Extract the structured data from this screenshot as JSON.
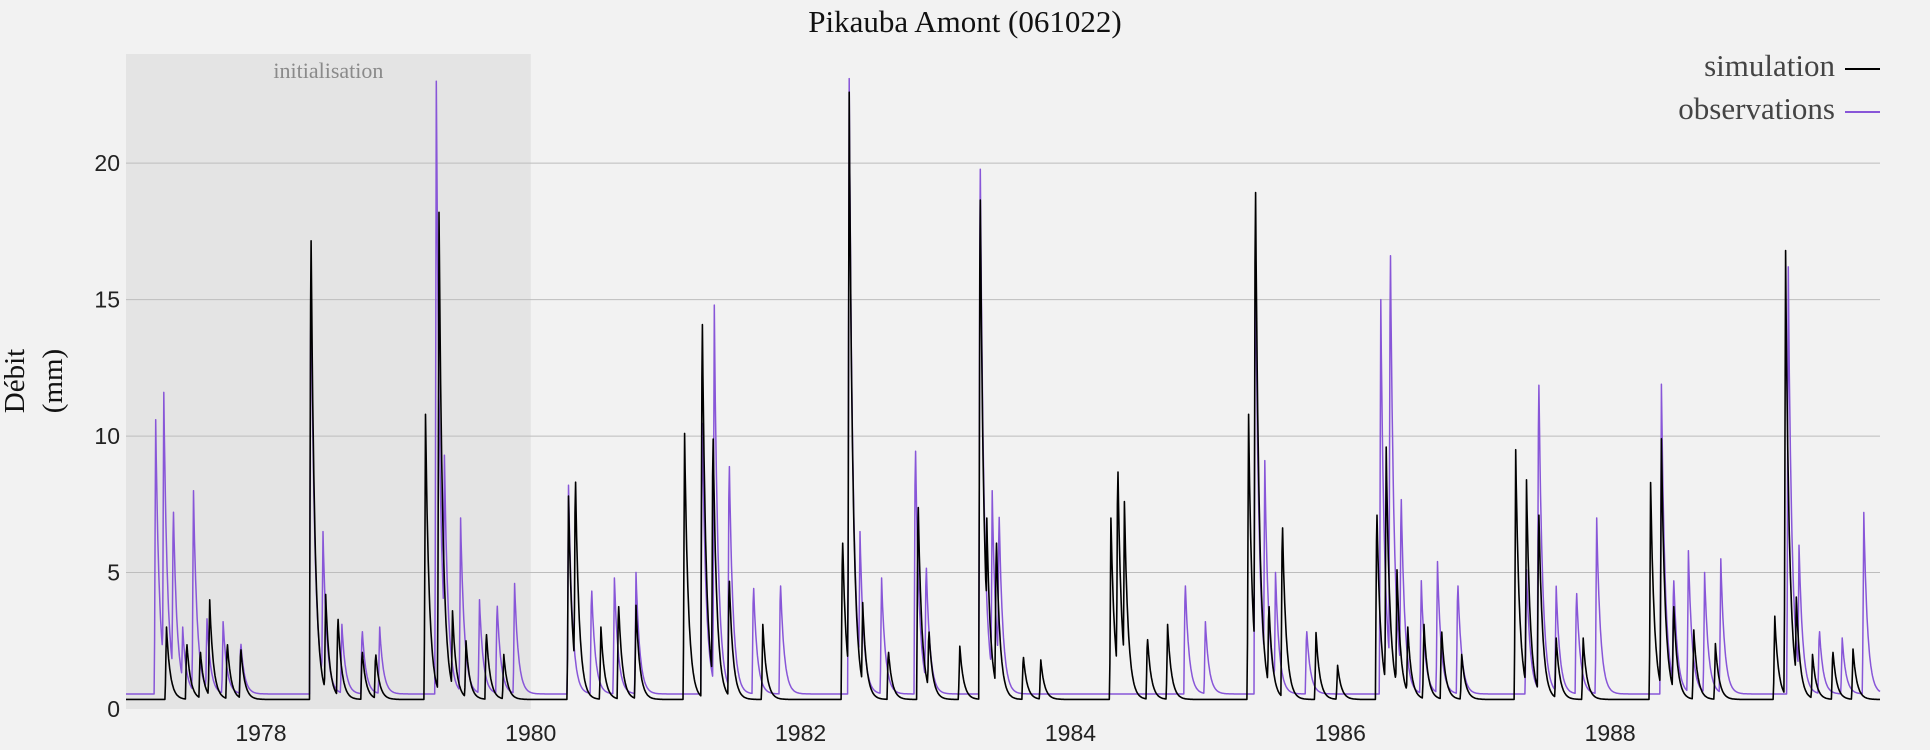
{
  "chart_data": {
    "type": "line",
    "title": "Pikauba Amont (061022)",
    "ylabel": [
      "Débit",
      "(mm)"
    ],
    "xlabel": "",
    "xlim": [
      1977.0,
      1990.0
    ],
    "ylim": [
      0,
      24
    ],
    "x_ticks": [
      1978,
      1980,
      1982,
      1984,
      1986,
      1988
    ],
    "y_ticks": [
      0,
      5,
      10,
      15,
      20
    ],
    "grid": "horizontal",
    "legend_position": "top-right",
    "shaded_region": {
      "label": "initialisation",
      "x_start": 1977.0,
      "x_end": 1980.0
    },
    "series": [
      {
        "name": "simulation",
        "color": "#000000",
        "peaks": [
          {
            "x": 1977.3,
            "y": 3.0
          },
          {
            "x": 1977.45,
            "y": 2.5
          },
          {
            "x": 1977.55,
            "y": 2.2
          },
          {
            "x": 1977.62,
            "y": 4.0
          },
          {
            "x": 1977.75,
            "y": 2.5
          },
          {
            "x": 1977.85,
            "y": 2.3
          },
          {
            "x": 1978.37,
            "y": 18.4
          },
          {
            "x": 1978.48,
            "y": 4.2
          },
          {
            "x": 1978.57,
            "y": 3.5
          },
          {
            "x": 1978.75,
            "y": 2.2
          },
          {
            "x": 1978.85,
            "y": 2.1
          },
          {
            "x": 1979.22,
            "y": 10.8
          },
          {
            "x": 1979.32,
            "y": 18.2
          },
          {
            "x": 1979.42,
            "y": 3.6
          },
          {
            "x": 1979.52,
            "y": 2.5
          },
          {
            "x": 1979.67,
            "y": 2.9
          },
          {
            "x": 1979.8,
            "y": 2.0
          },
          {
            "x": 1980.28,
            "y": 7.8
          },
          {
            "x": 1980.33,
            "y": 8.9
          },
          {
            "x": 1980.52,
            "y": 3.0
          },
          {
            "x": 1980.65,
            "y": 4.0
          },
          {
            "x": 1980.78,
            "y": 3.8
          },
          {
            "x": 1981.14,
            "y": 10.1
          },
          {
            "x": 1981.27,
            "y": 15.1
          },
          {
            "x": 1981.35,
            "y": 10.6
          },
          {
            "x": 1981.47,
            "y": 5.0
          },
          {
            "x": 1981.72,
            "y": 3.1
          },
          {
            "x": 1982.31,
            "y": 6.5
          },
          {
            "x": 1982.36,
            "y": 22.6
          },
          {
            "x": 1982.46,
            "y": 3.9
          },
          {
            "x": 1982.65,
            "y": 2.2
          },
          {
            "x": 1982.87,
            "y": 7.9
          },
          {
            "x": 1982.95,
            "y": 3.0
          },
          {
            "x": 1983.18,
            "y": 2.3
          },
          {
            "x": 1983.33,
            "y": 20.0
          },
          {
            "x": 1983.38,
            "y": 7.0
          },
          {
            "x": 1983.45,
            "y": 6.5
          },
          {
            "x": 1983.65,
            "y": 2.0
          },
          {
            "x": 1983.78,
            "y": 1.8
          },
          {
            "x": 1984.3,
            "y": 7.0
          },
          {
            "x": 1984.35,
            "y": 9.3
          },
          {
            "x": 1984.4,
            "y": 7.6
          },
          {
            "x": 1984.57,
            "y": 2.7
          },
          {
            "x": 1984.72,
            "y": 3.1
          },
          {
            "x": 1985.32,
            "y": 10.8
          },
          {
            "x": 1985.37,
            "y": 20.3
          },
          {
            "x": 1985.47,
            "y": 4.0
          },
          {
            "x": 1985.57,
            "y": 7.1
          },
          {
            "x": 1985.82,
            "y": 2.8
          },
          {
            "x": 1985.98,
            "y": 1.6
          },
          {
            "x": 1986.27,
            "y": 7.6
          },
          {
            "x": 1986.34,
            "y": 9.6
          },
          {
            "x": 1986.42,
            "y": 5.1
          },
          {
            "x": 1986.5,
            "y": 3.0
          },
          {
            "x": 1986.62,
            "y": 3.1
          },
          {
            "x": 1986.75,
            "y": 3.0
          },
          {
            "x": 1986.9,
            "y": 2.0
          },
          {
            "x": 1987.3,
            "y": 9.5
          },
          {
            "x": 1987.38,
            "y": 8.4
          },
          {
            "x": 1987.47,
            "y": 7.6
          },
          {
            "x": 1987.6,
            "y": 2.6
          },
          {
            "x": 1987.8,
            "y": 2.6
          },
          {
            "x": 1988.3,
            "y": 8.3
          },
          {
            "x": 1988.38,
            "y": 9.9
          },
          {
            "x": 1988.47,
            "y": 4.0
          },
          {
            "x": 1988.62,
            "y": 2.9
          },
          {
            "x": 1988.78,
            "y": 2.4
          },
          {
            "x": 1989.22,
            "y": 3.4
          },
          {
            "x": 1989.3,
            "y": 16.8
          },
          {
            "x": 1989.38,
            "y": 4.1
          },
          {
            "x": 1989.5,
            "y": 2.0
          },
          {
            "x": 1989.65,
            "y": 2.2
          },
          {
            "x": 1989.8,
            "y": 2.2
          }
        ]
      },
      {
        "name": "observations",
        "color": "#8856d8",
        "peaks": [
          {
            "x": 1977.22,
            "y": 10.6
          },
          {
            "x": 1977.28,
            "y": 11.6
          },
          {
            "x": 1977.35,
            "y": 7.7
          },
          {
            "x": 1977.42,
            "y": 3.0
          },
          {
            "x": 1977.5,
            "y": 8.0
          },
          {
            "x": 1977.6,
            "y": 3.3
          },
          {
            "x": 1977.72,
            "y": 3.2
          },
          {
            "x": 1977.85,
            "y": 2.5
          },
          {
            "x": 1978.37,
            "y": 16.8
          },
          {
            "x": 1978.46,
            "y": 6.5
          },
          {
            "x": 1978.6,
            "y": 3.1
          },
          {
            "x": 1978.75,
            "y": 3.0
          },
          {
            "x": 1978.88,
            "y": 3.0
          },
          {
            "x": 1979.3,
            "y": 23.0
          },
          {
            "x": 1979.36,
            "y": 9.3
          },
          {
            "x": 1979.48,
            "y": 7.0
          },
          {
            "x": 1979.62,
            "y": 4.0
          },
          {
            "x": 1979.75,
            "y": 4.0
          },
          {
            "x": 1979.88,
            "y": 4.6
          },
          {
            "x": 1980.28,
            "y": 8.2
          },
          {
            "x": 1980.45,
            "y": 4.6
          },
          {
            "x": 1980.62,
            "y": 4.8
          },
          {
            "x": 1980.78,
            "y": 5.0
          },
          {
            "x": 1981.27,
            "y": 11.2
          },
          {
            "x": 1981.36,
            "y": 14.8
          },
          {
            "x": 1981.47,
            "y": 9.5
          },
          {
            "x": 1981.65,
            "y": 4.7
          },
          {
            "x": 1981.85,
            "y": 4.8
          },
          {
            "x": 1982.36,
            "y": 23.1
          },
          {
            "x": 1982.44,
            "y": 6.5
          },
          {
            "x": 1982.6,
            "y": 4.8
          },
          {
            "x": 1982.85,
            "y": 10.1
          },
          {
            "x": 1982.93,
            "y": 5.5
          },
          {
            "x": 1983.33,
            "y": 21.2
          },
          {
            "x": 1983.42,
            "y": 8.0
          },
          {
            "x": 1983.47,
            "y": 7.5
          },
          {
            "x": 1984.85,
            "y": 4.8
          },
          {
            "x": 1985.0,
            "y": 3.2
          },
          {
            "x": 1985.37,
            "y": 17.3
          },
          {
            "x": 1985.44,
            "y": 9.1
          },
          {
            "x": 1985.52,
            "y": 5.0
          },
          {
            "x": 1985.75,
            "y": 3.0
          },
          {
            "x": 1986.3,
            "y": 15.0
          },
          {
            "x": 1986.37,
            "y": 17.8
          },
          {
            "x": 1986.45,
            "y": 8.2
          },
          {
            "x": 1986.6,
            "y": 4.7
          },
          {
            "x": 1986.72,
            "y": 5.4
          },
          {
            "x": 1986.87,
            "y": 4.8
          },
          {
            "x": 1987.38,
            "y": 5.1
          },
          {
            "x": 1987.47,
            "y": 12.7
          },
          {
            "x": 1987.6,
            "y": 4.5
          },
          {
            "x": 1987.75,
            "y": 4.5
          },
          {
            "x": 1987.9,
            "y": 7.0
          },
          {
            "x": 1988.38,
            "y": 11.9
          },
          {
            "x": 1988.47,
            "y": 5.0
          },
          {
            "x": 1988.58,
            "y": 5.8
          },
          {
            "x": 1988.7,
            "y": 5.0
          },
          {
            "x": 1988.82,
            "y": 5.5
          },
          {
            "x": 1989.32,
            "y": 16.2
          },
          {
            "x": 1989.4,
            "y": 6.0
          },
          {
            "x": 1989.55,
            "y": 3.0
          },
          {
            "x": 1989.72,
            "y": 2.6
          },
          {
            "x": 1989.88,
            "y": 7.2
          }
        ]
      }
    ]
  }
}
